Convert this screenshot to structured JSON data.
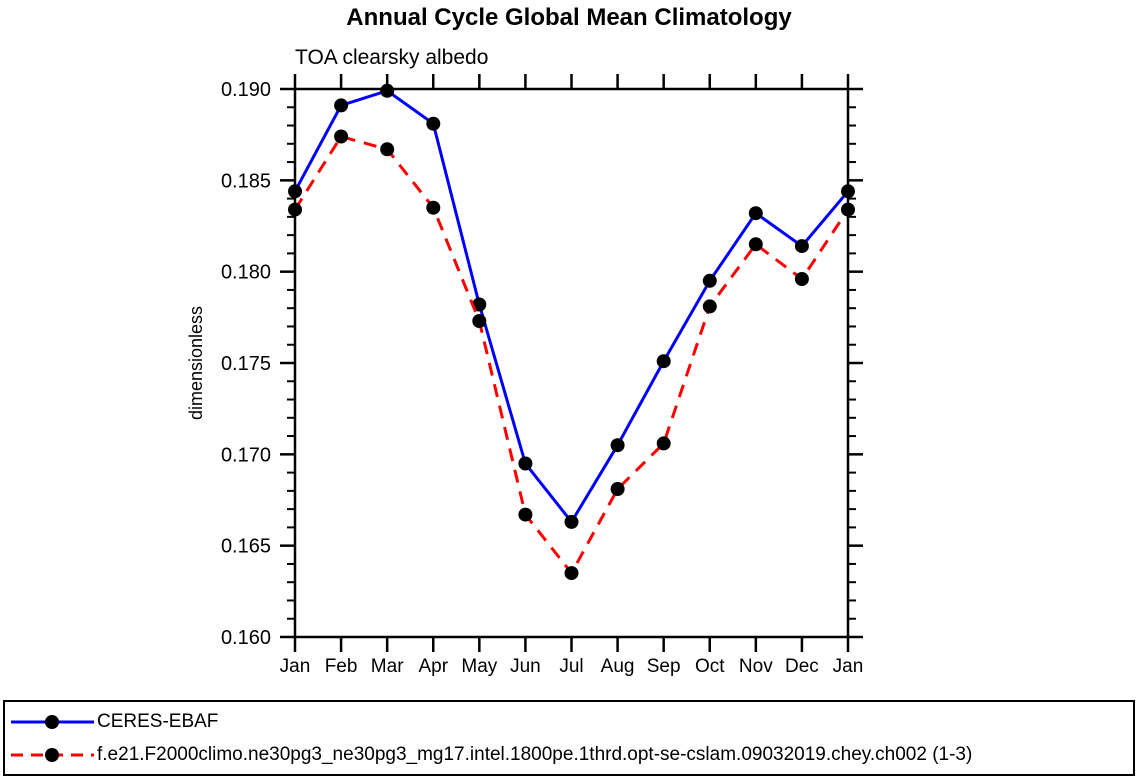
{
  "chart_data": {
    "type": "line",
    "title": "Annual Cycle Global Mean Climatology",
    "subtitle": "TOA clearsky albedo",
    "ylabel": "dimensionless",
    "xlabel": "",
    "x_categories": [
      "Jan",
      "Feb",
      "Mar",
      "Apr",
      "May",
      "Jun",
      "Jul",
      "Aug",
      "Sep",
      "Oct",
      "Nov",
      "Dec",
      "Jan"
    ],
    "ylim": [
      0.16,
      0.19
    ],
    "y_major_step": 0.005,
    "y_minor_step": 0.001,
    "y_tick_labels": [
      "0.160",
      "0.165",
      "0.170",
      "0.175",
      "0.180",
      "0.185",
      "0.190"
    ],
    "grid": false,
    "legend_position": "bottom-box",
    "axis_color": "#000000",
    "marker": "filled-circle",
    "marker_color": "#000000",
    "series": [
      {
        "name": "CERES-EBAF",
        "color": "#0000ff",
        "line_style": "solid",
        "values": [
          0.1844,
          0.1891,
          0.1899,
          0.1881,
          0.1782,
          0.1695,
          0.1663,
          0.1705,
          0.1751,
          0.1795,
          0.1832,
          0.1814,
          0.1844
        ]
      },
      {
        "name": "f.e21.F2000climo.ne30pg3_ne30pg3_mg17.intel.1800pe.1thrd.opt-se-cslam.09032019.chey.ch002 (1-3)",
        "color": "#ff0000",
        "line_style": "dashed",
        "values": [
          0.1834,
          0.1874,
          0.1867,
          0.1835,
          0.1773,
          0.1667,
          0.1635,
          0.1681,
          0.1706,
          0.1781,
          0.1815,
          0.1796,
          0.1834
        ]
      }
    ]
  }
}
